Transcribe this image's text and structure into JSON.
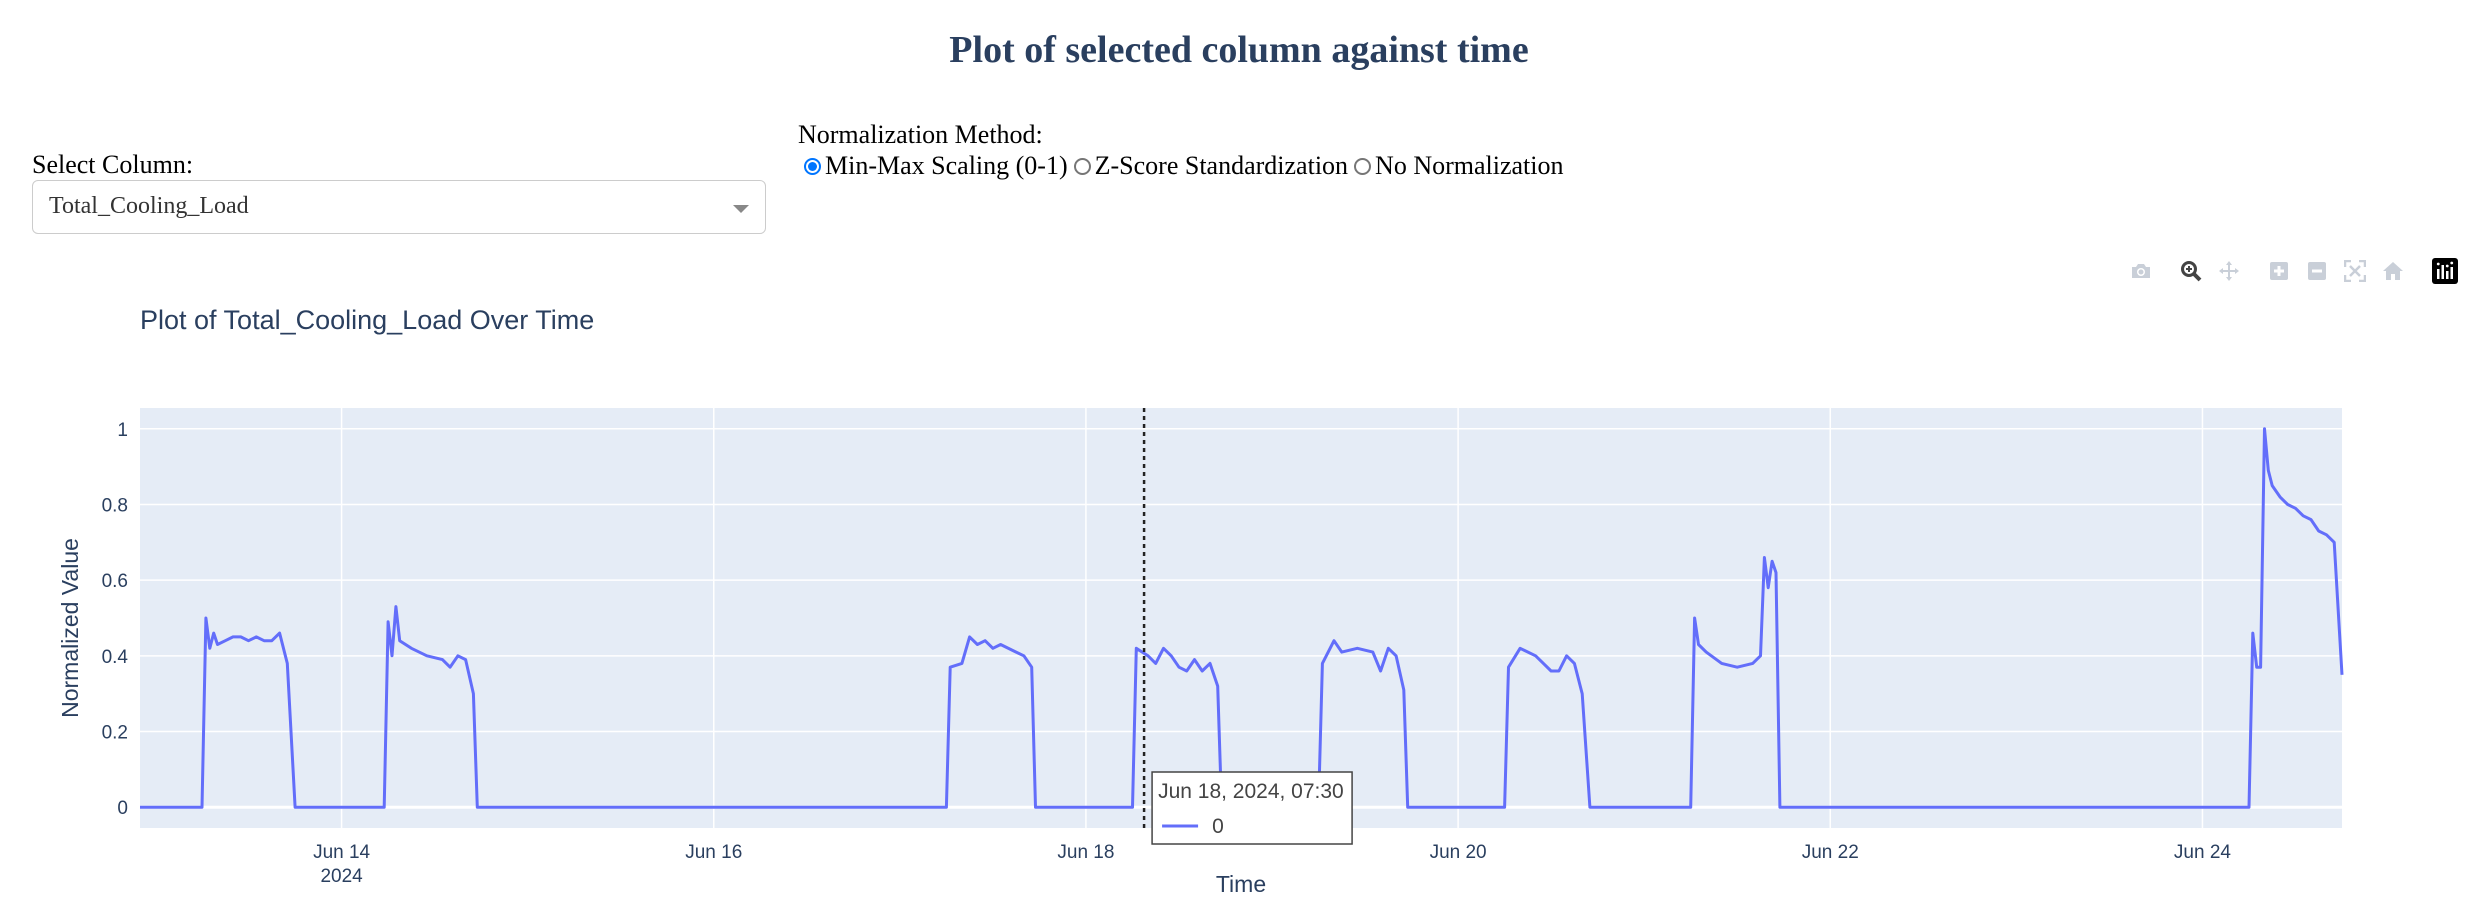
{
  "page": {
    "title": "Plot of selected column against time"
  },
  "controls": {
    "select_label": "Select Column:",
    "selected_column": "Total_Cooling_Load",
    "normalization_label": "Normalization Method:",
    "normalization_options": [
      "Min-Max Scaling (0-1)",
      "Z-Score Standardization",
      "No Normalization"
    ],
    "normalization_selected": "Min-Max Scaling (0-1)"
  },
  "modebar": {
    "icons": [
      "camera-icon",
      "zoom-icon",
      "pan-icon",
      "zoom-in-icon",
      "zoom-out-icon",
      "autoscale-icon",
      "reset-axes-icon",
      "plotly-logo-icon"
    ]
  },
  "hover": {
    "title": "Jun 18, 2024, 07:30",
    "series": "0",
    "x": "2024-06-18 07:30"
  },
  "chart_data": {
    "type": "line",
    "title": "Plot of Total_Cooling_Load Over Time",
    "xlabel": "Time",
    "ylabel": "Normalized Value",
    "xlim": [
      "2024-06-12 22:00",
      "2024-06-24 18:00"
    ],
    "ylim": [
      -0.055,
      1.055
    ],
    "xticks": [
      "Jun 14",
      "Jun 16",
      "Jun 18",
      "Jun 20",
      "Jun 22",
      "Jun 24"
    ],
    "xtick_year": "2024",
    "yticks": [
      "0",
      "0.2",
      "0.4",
      "0.6",
      "0.8",
      "1"
    ],
    "line_color": "#636efa",
    "plot_background": "#e5ecf6",
    "grid": true,
    "series": [
      {
        "x": [
          "2024-06-12 22:00",
          "2024-06-13 06:00",
          "2024-06-13 06:30",
          "2024-06-13 07:00",
          "2024-06-13 07:30",
          "2024-06-13 08:00",
          "2024-06-13 09:00",
          "2024-06-13 10:00",
          "2024-06-13 11:00",
          "2024-06-13 12:00",
          "2024-06-13 13:00",
          "2024-06-13 14:00",
          "2024-06-13 15:00",
          "2024-06-13 16:00",
          "2024-06-13 17:00",
          "2024-06-13 18:00",
          "2024-06-13 18:30",
          "2024-06-13 22:00",
          "2024-06-14 05:30",
          "2024-06-14 06:00",
          "2024-06-14 06:30",
          "2024-06-14 07:00",
          "2024-06-14 07:30",
          "2024-06-14 09:00",
          "2024-06-14 11:00",
          "2024-06-14 13:00",
          "2024-06-14 14:00",
          "2024-06-14 15:00",
          "2024-06-14 16:00",
          "2024-06-14 17:00",
          "2024-06-14 17:30",
          "2024-06-14 18:30",
          "2024-06-17 06:00",
          "2024-06-17 06:30",
          "2024-06-17 08:00",
          "2024-06-17 09:00",
          "2024-06-17 10:00",
          "2024-06-17 11:00",
          "2024-06-17 12:00",
          "2024-06-17 13:00",
          "2024-06-17 15:00",
          "2024-06-17 16:00",
          "2024-06-17 17:00",
          "2024-06-17 17:30",
          "2024-06-17 18:30",
          "2024-06-18 06:00",
          "2024-06-18 06:30",
          "2024-06-18 08:00",
          "2024-06-18 09:00",
          "2024-06-18 10:00",
          "2024-06-18 11:00",
          "2024-06-18 12:00",
          "2024-06-18 13:00",
          "2024-06-18 14:00",
          "2024-06-18 15:00",
          "2024-06-18 16:00",
          "2024-06-18 17:00",
          "2024-06-18 17:30",
          "2024-06-18 18:30",
          "2024-06-19 06:00",
          "2024-06-19 06:30",
          "2024-06-19 08:00",
          "2024-06-19 09:00",
          "2024-06-19 11:00",
          "2024-06-19 13:00",
          "2024-06-19 14:00",
          "2024-06-19 15:00",
          "2024-06-19 16:00",
          "2024-06-19 17:00",
          "2024-06-19 17:30",
          "2024-06-19 18:30",
          "2024-06-20 06:00",
          "2024-06-20 06:30",
          "2024-06-20 08:00",
          "2024-06-20 10:00",
          "2024-06-20 11:00",
          "2024-06-20 12:00",
          "2024-06-20 13:00",
          "2024-06-20 14:00",
          "2024-06-20 15:00",
          "2024-06-20 16:00",
          "2024-06-20 17:00",
          "2024-06-20 17:30",
          "2024-06-20 18:30",
          "2024-06-21 06:00",
          "2024-06-21 06:30",
          "2024-06-21 07:00",
          "2024-06-21 08:00",
          "2024-06-21 10:00",
          "2024-06-21 12:00",
          "2024-06-21 14:00",
          "2024-06-21 15:00",
          "2024-06-21 15:30",
          "2024-06-21 16:00",
          "2024-06-21 16:30",
          "2024-06-21 17:00",
          "2024-06-21 17:30",
          "2024-06-21 18:30",
          "2024-06-24 06:00",
          "2024-06-24 06:30",
          "2024-06-24 07:00",
          "2024-06-24 07:30",
          "2024-06-24 08:00",
          "2024-06-24 08:30",
          "2024-06-24 09:00",
          "2024-06-24 10:00",
          "2024-06-24 11:00",
          "2024-06-24 12:00",
          "2024-06-24 13:00",
          "2024-06-24 14:00",
          "2024-06-24 15:00",
          "2024-06-24 16:00",
          "2024-06-24 17:00",
          "2024-06-24 18:00"
        ],
        "values": [
          0,
          0,
          0.5,
          0.42,
          0.46,
          0.43,
          0.44,
          0.45,
          0.45,
          0.44,
          0.45,
          0.44,
          0.44,
          0.46,
          0.38,
          0,
          0,
          0,
          0,
          0.49,
          0.4,
          0.53,
          0.44,
          0.42,
          0.4,
          0.39,
          0.37,
          0.4,
          0.39,
          0.3,
          0,
          0,
          0,
          0.37,
          0.38,
          0.45,
          0.43,
          0.44,
          0.42,
          0.43,
          0.41,
          0.4,
          0.37,
          0,
          0,
          0,
          0.42,
          0.4,
          0.38,
          0.42,
          0.4,
          0.37,
          0.36,
          0.39,
          0.36,
          0.38,
          0.32,
          0,
          0,
          0,
          0.38,
          0.44,
          0.41,
          0.42,
          0.41,
          0.36,
          0.42,
          0.4,
          0.31,
          0,
          0,
          0,
          0.37,
          0.42,
          0.4,
          0.38,
          0.36,
          0.36,
          0.4,
          0.38,
          0.3,
          0,
          0,
          0,
          0,
          0.5,
          0.43,
          0.41,
          0.38,
          0.37,
          0.38,
          0.4,
          0.66,
          0.58,
          0.65,
          0.62,
          0,
          0,
          0,
          0.46,
          0.37,
          0.37,
          1.0,
          0.89,
          0.85,
          0.82,
          0.8,
          0.79,
          0.77,
          0.76,
          0.73,
          0.72,
          0.7,
          0.35
        ]
      }
    ]
  }
}
